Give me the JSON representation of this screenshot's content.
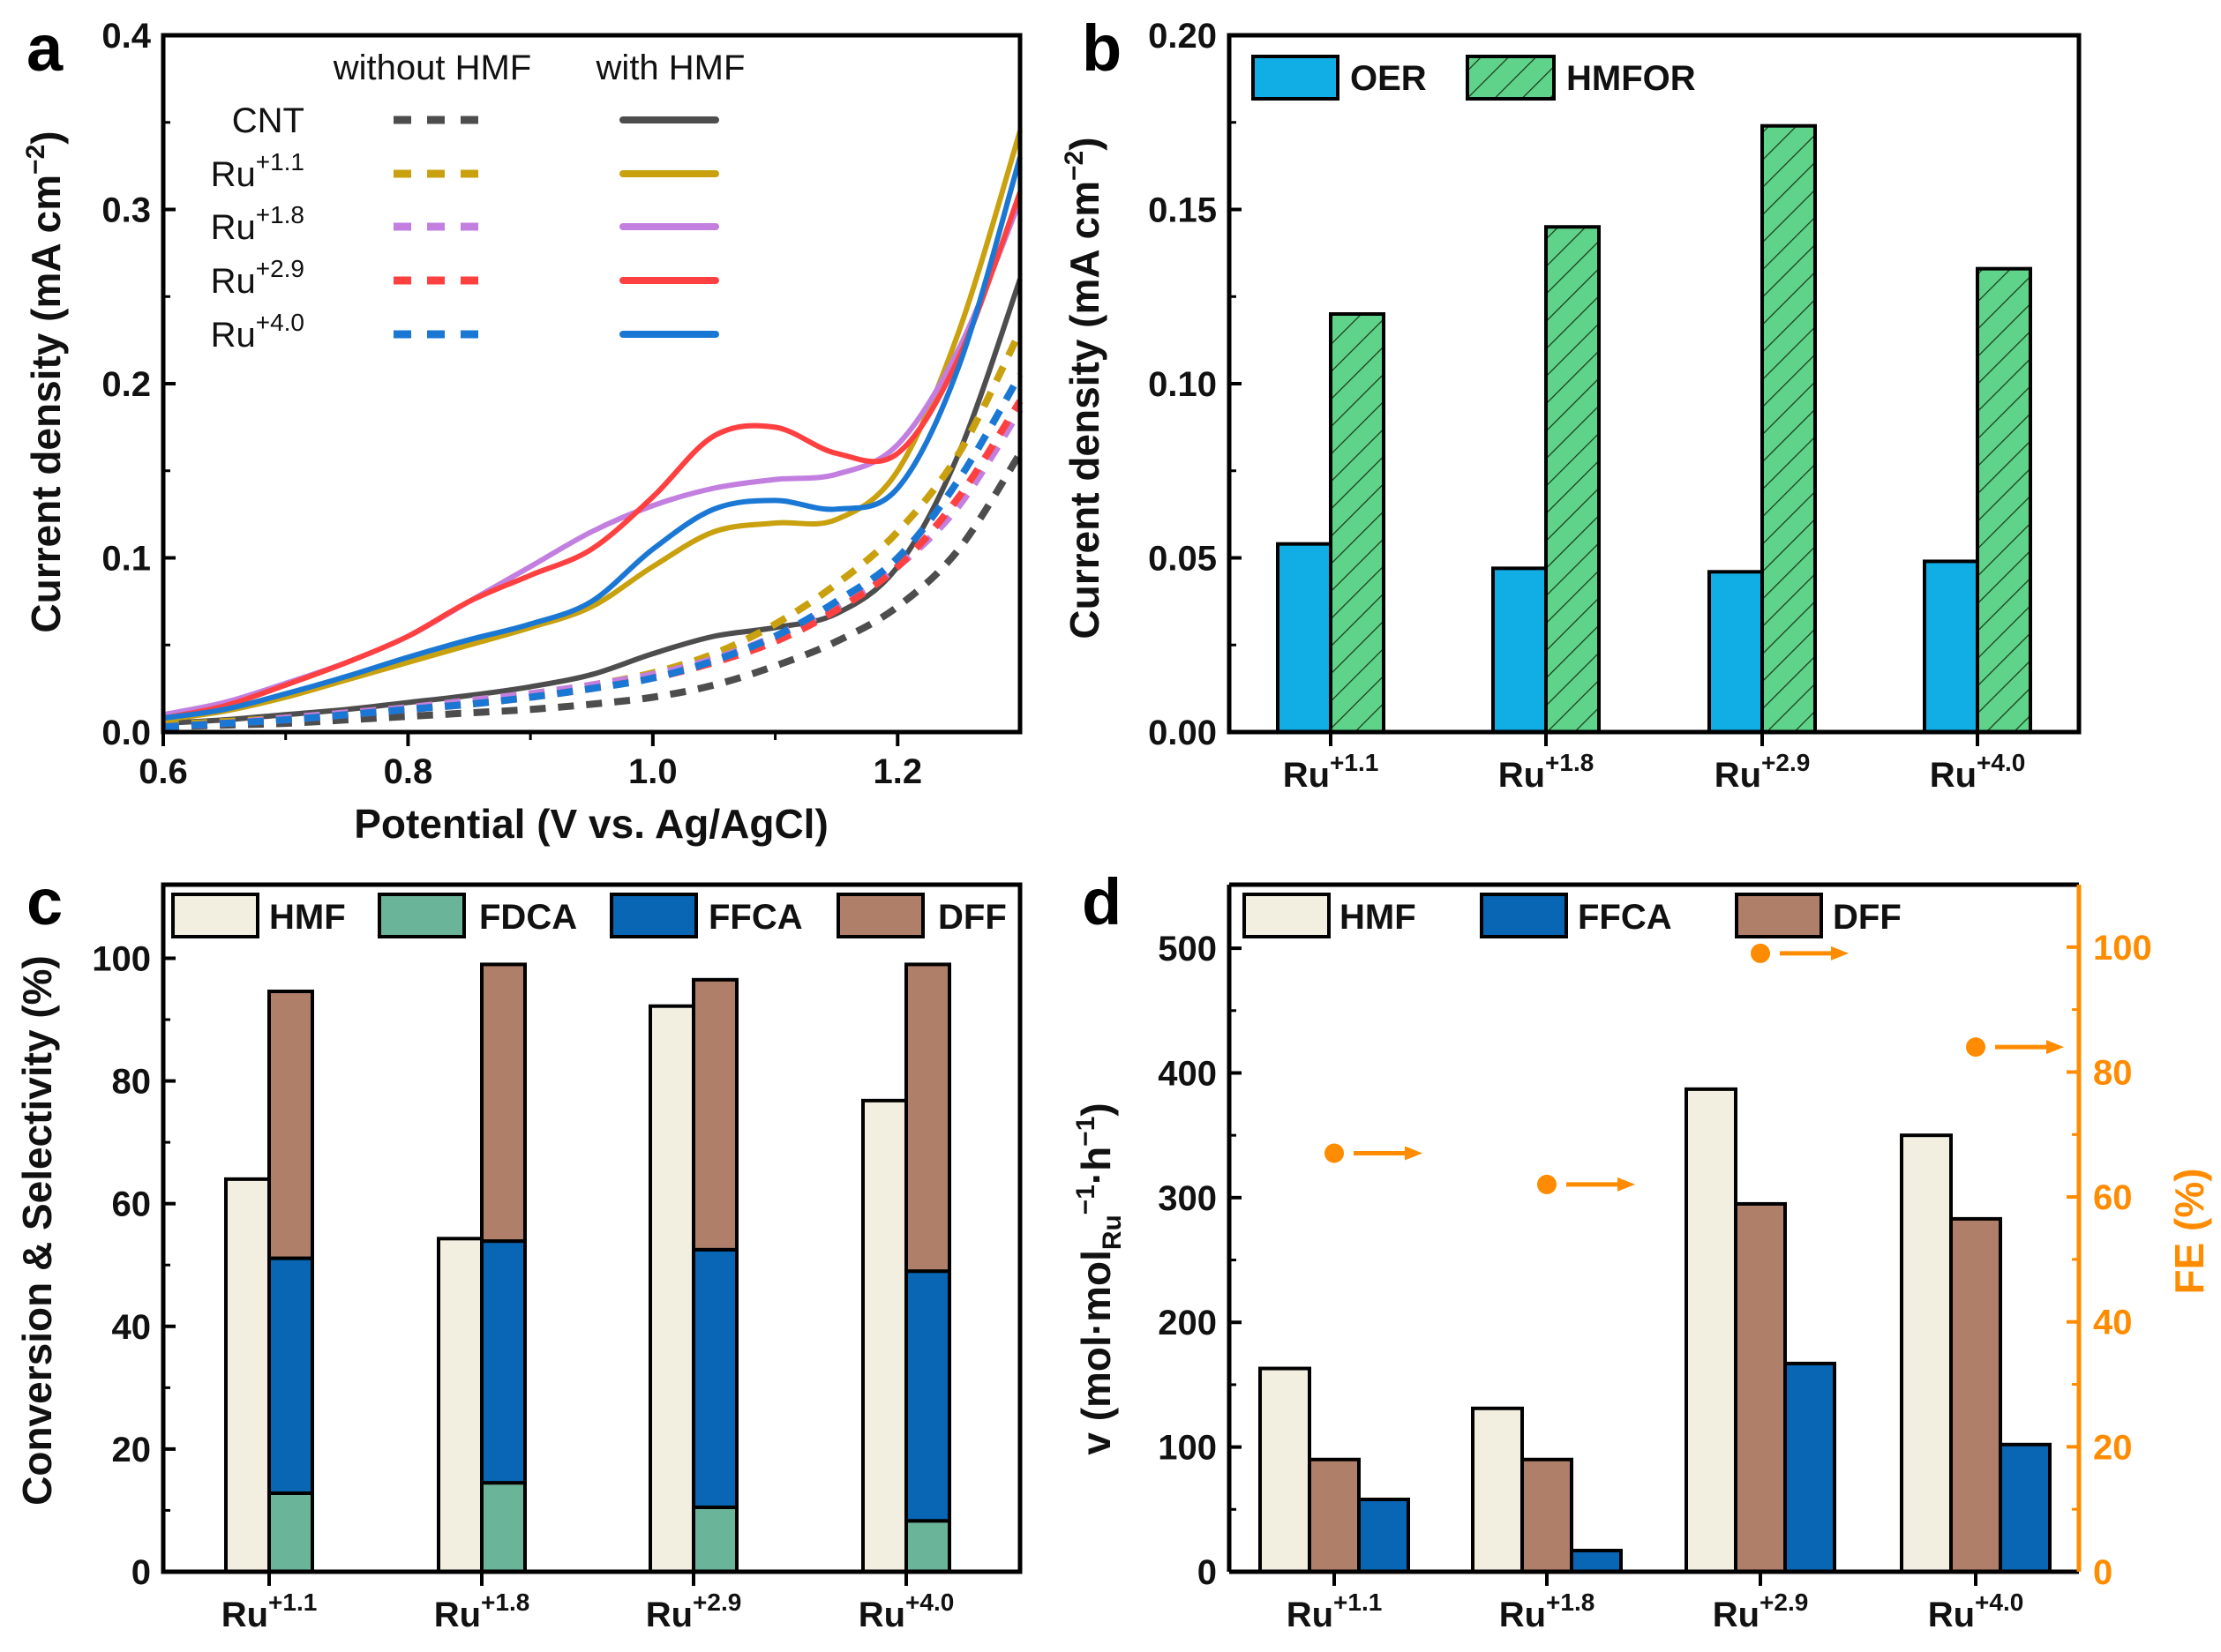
{
  "chart_data": [
    {
      "panel": "a",
      "type": "line",
      "xlabel": "Potential (V vs. Ag/AgCl)",
      "ylabel": [
        {
          "t": "Current density (mA cm",
          "s": ""
        },
        {
          "t": "−2",
          "s": "sup"
        },
        {
          "t": ")",
          "s": ""
        }
      ],
      "xlim": [
        0.6,
        1.3
      ],
      "ylim": [
        0,
        0.4
      ],
      "xticks": [
        "0.6",
        "0.8",
        "1.0",
        "1.2"
      ],
      "yticks": [
        "0.0",
        "0.1",
        "0.2",
        "0.3",
        "0.4"
      ],
      "legend_headers": {
        "dashed": "without HMF",
        "solid": "with HMF"
      },
      "legend_placement": "top-left",
      "x": [
        0.6,
        0.65,
        0.7,
        0.75,
        0.8,
        0.85,
        0.9,
        0.95,
        1.0,
        1.05,
        1.1,
        1.15,
        1.2,
        1.25,
        1.3
      ],
      "series": [
        {
          "label": {
            "base": "CNT",
            "sup": ""
          },
          "color": "#4d4d4d",
          "without_hmf": [
            0.003,
            0.004,
            0.005,
            0.007,
            0.009,
            0.011,
            0.013,
            0.016,
            0.02,
            0.027,
            0.038,
            0.052,
            0.072,
            0.105,
            0.16
          ],
          "with_hmf": [
            0.005,
            0.007,
            0.01,
            0.013,
            0.017,
            0.021,
            0.026,
            0.033,
            0.045,
            0.055,
            0.06,
            0.068,
            0.095,
            0.16,
            0.26
          ]
        },
        {
          "label": {
            "base": "Ru",
            "sup": "+1.1"
          },
          "color": "#c9a00e",
          "without_hmf": [
            0.004,
            0.006,
            0.008,
            0.011,
            0.014,
            0.018,
            0.022,
            0.027,
            0.034,
            0.045,
            0.062,
            0.085,
            0.115,
            0.16,
            0.23
          ],
          "with_hmf": [
            0.007,
            0.012,
            0.02,
            0.03,
            0.04,
            0.05,
            0.06,
            0.072,
            0.095,
            0.115,
            0.12,
            0.122,
            0.15,
            0.23,
            0.345
          ]
        },
        {
          "label": {
            "base": "Ru",
            "sup": "+1.8"
          },
          "color": "#c27fe0",
          "without_hmf": [
            0.003,
            0.005,
            0.008,
            0.011,
            0.014,
            0.018,
            0.022,
            0.027,
            0.033,
            0.042,
            0.055,
            0.072,
            0.095,
            0.13,
            0.185
          ],
          "with_hmf": [
            0.01,
            0.017,
            0.028,
            0.04,
            0.055,
            0.075,
            0.095,
            0.115,
            0.13,
            0.14,
            0.145,
            0.148,
            0.165,
            0.22,
            0.305
          ]
        },
        {
          "label": {
            "base": "Ru",
            "sup": "+2.9"
          },
          "color": "#ff4040",
          "without_hmf": [
            0.003,
            0.005,
            0.007,
            0.01,
            0.013,
            0.016,
            0.02,
            0.025,
            0.031,
            0.04,
            0.052,
            0.07,
            0.095,
            0.135,
            0.19
          ],
          "with_hmf": [
            0.008,
            0.015,
            0.027,
            0.04,
            0.055,
            0.075,
            0.09,
            0.105,
            0.135,
            0.17,
            0.175,
            0.16,
            0.16,
            0.215,
            0.31
          ]
        },
        {
          "label": {
            "base": "Ru",
            "sup": "+4.0"
          },
          "color": "#1a78d4",
          "without_hmf": [
            0.003,
            0.005,
            0.007,
            0.01,
            0.013,
            0.016,
            0.02,
            0.025,
            0.031,
            0.041,
            0.055,
            0.075,
            0.1,
            0.145,
            0.205
          ],
          "with_hmf": [
            0.008,
            0.013,
            0.022,
            0.032,
            0.043,
            0.053,
            0.062,
            0.075,
            0.105,
            0.128,
            0.133,
            0.128,
            0.14,
            0.21,
            0.33
          ]
        }
      ]
    },
    {
      "panel": "b",
      "type": "bar",
      "ylabel": [
        {
          "t": "Current density (mA cm",
          "s": ""
        },
        {
          "t": "−2",
          "s": "sup"
        },
        {
          "t": ")",
          "s": ""
        }
      ],
      "ylim": [
        0,
        0.2
      ],
      "yticks": [
        "0.00",
        "0.05",
        "0.10",
        "0.15",
        "0.20"
      ],
      "categories": [
        {
          "base": "Ru",
          "sup": "+1.1"
        },
        {
          "base": "Ru",
          "sup": "+1.8"
        },
        {
          "base": "Ru",
          "sup": "+2.9"
        },
        {
          "base": "Ru",
          "sup": "+4.0"
        }
      ],
      "legend_placement": "top-left",
      "series": [
        {
          "name": "OER",
          "color": "#11aee6",
          "pattern": "solid",
          "values": [
            0.054,
            0.047,
            0.046,
            0.049
          ]
        },
        {
          "name": "HMFOR",
          "color": "#5fd38a",
          "pattern": "hatched",
          "values": [
            0.12,
            0.145,
            0.174,
            0.133
          ]
        }
      ]
    },
    {
      "panel": "c",
      "type": "bar",
      "ylabel": [
        {
          "t": "Conversion & Selectivity (%)",
          "s": ""
        }
      ],
      "ylim": [
        0,
        112
      ],
      "yticks": [
        "0",
        "20",
        "40",
        "60",
        "80",
        "100"
      ],
      "categories": [
        {
          "base": "Ru",
          "sup": "+1.1"
        },
        {
          "base": "Ru",
          "sup": "+1.8"
        },
        {
          "base": "Ru",
          "sup": "+2.9"
        },
        {
          "base": "Ru",
          "sup": "+4.0"
        }
      ],
      "legend_placement": "top",
      "series": [
        {
          "name": "HMF",
          "color": "#f3efe0",
          "stack": "conversion",
          "values": [
            64,
            54.3,
            92.2,
            76.8
          ]
        },
        {
          "name": "FDCA",
          "color": "#6ab49a",
          "stack": "selectivity",
          "values": [
            12.8,
            14.5,
            10.5,
            8.3
          ]
        },
        {
          "name": "FFCA",
          "color": "#0866b4",
          "stack": "selectivity",
          "values": [
            38.3,
            39.4,
            42,
            40.7
          ]
        },
        {
          "name": "DFF",
          "color": "#b07f6a",
          "stack": "selectivity",
          "values": [
            43.5,
            45.1,
            44,
            50
          ]
        }
      ]
    },
    {
      "panel": "d",
      "type": "bar",
      "ylabel": [
        {
          "t": "v (mol·mol",
          "s": ""
        },
        {
          "t": "Ru",
          "s": "sub"
        },
        {
          "t": "−1",
          "s": "sup"
        },
        {
          "t": "·h",
          "s": ""
        },
        {
          "t": "−1",
          "s": "sup"
        },
        {
          "t": ")",
          "s": ""
        }
      ],
      "y2label": "FE (%)",
      "ylim": [
        0,
        551
      ],
      "y2lim": [
        0,
        110
      ],
      "yticks": [
        "0",
        "100",
        "200",
        "300",
        "400",
        "500"
      ],
      "y2ticks": [
        "0",
        "20",
        "40",
        "60",
        "80",
        "100"
      ],
      "y2color": "#ff8c00",
      "categories": [
        {
          "base": "Ru",
          "sup": "+1.1"
        },
        {
          "base": "Ru",
          "sup": "+1.8"
        },
        {
          "base": "Ru",
          "sup": "+2.9"
        },
        {
          "base": "Ru",
          "sup": "+4.0"
        }
      ],
      "legend_placement": "top",
      "legend_order": [
        "HMF",
        "FFCA",
        "DFF"
      ],
      "series": [
        {
          "name": "HMF",
          "color": "#f3efe0",
          "values": [
            163,
            131,
            387,
            350
          ]
        },
        {
          "name": "DFF",
          "color": "#b07f6a",
          "values": [
            90,
            90,
            295,
            283
          ]
        },
        {
          "name": "FFCA",
          "color": "#0866b4",
          "values": [
            58,
            17,
            167,
            102
          ]
        }
      ],
      "fe": {
        "axis": "right",
        "color": "#ff8c00",
        "values": [
          67,
          62,
          99,
          84
        ]
      }
    }
  ]
}
